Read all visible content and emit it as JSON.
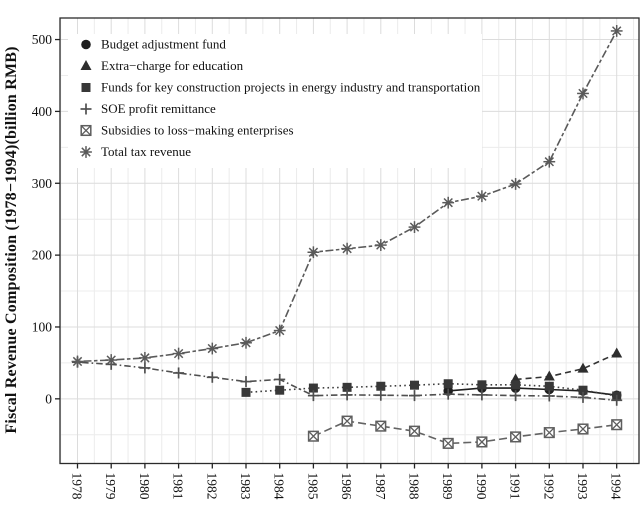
{
  "figure": {
    "background": "#ffffff",
    "panel_border_color": "#2b2b2b",
    "grid_major_color": "#dcdcdc",
    "grid_minor_color": "#ececec"
  },
  "chart_data": {
    "type": "line",
    "title": "",
    "xlabel": "",
    "ylabel": "Fiscal Revenue Composition (1978−1994)(billion RMB)",
    "x": [
      1978,
      1979,
      1980,
      1981,
      1982,
      1983,
      1984,
      1985,
      1986,
      1987,
      1988,
      1989,
      1990,
      1991,
      1992,
      1993,
      1994
    ],
    "x_tick_labels": [
      "1978",
      "1979",
      "1980",
      "1981",
      "1982",
      "1983",
      "1984",
      "1985",
      "1986",
      "1987",
      "1988",
      "1989",
      "1990",
      "1991",
      "1992",
      "1993",
      "1994"
    ],
    "y_ticks": [
      0,
      100,
      200,
      300,
      400,
      500
    ],
    "ylim": [
      -90,
      530
    ],
    "grid": "major and minor, light gray on white",
    "legend_position": "top-left inside panel",
    "series": [
      {
        "name": "Budget adjustment fund",
        "marker": "circle",
        "linestyle": "solid",
        "color": "#1f1f1f",
        "marker_color": "#1f1f1f",
        "start_year": 1989,
        "values": [
          11,
          15,
          15,
          13,
          11,
          5
        ]
      },
      {
        "name": "Extra−charge for education",
        "marker": "triangle",
        "linestyle": "dashed",
        "color": "#333333",
        "marker_color": "#2e2e2e",
        "start_year": 1991,
        "values": [
          27,
          31,
          42,
          63
        ]
      },
      {
        "name": "Funds for key construction projects in energy industry and transportation",
        "marker": "square",
        "linestyle": "dotted",
        "color": "#3d3d3d",
        "marker_color": "#383838",
        "start_year": 1983,
        "values": [
          9,
          12,
          15,
          16,
          17.5,
          19,
          21,
          19.5,
          19.5,
          17.5,
          12,
          4
        ]
      },
      {
        "name": "SOE profit remittance",
        "marker": "plus",
        "linestyle": "dashdot",
        "color": "#4f4f4f",
        "marker_color": "#4f4f4f",
        "start_year": 1978,
        "values": [
          51,
          48,
          43,
          36,
          30,
          24,
          27,
          4.5,
          5.5,
          5,
          4.5,
          6.5,
          5.5,
          4.5,
          4,
          2,
          -2
        ]
      },
      {
        "name": "Subsidies to loss−making enterprises",
        "marker": "square-x",
        "linestyle": "longdash",
        "color": "#636363",
        "marker_color": "#5e5e5e",
        "start_year": 1985,
        "values": [
          -52,
          -31,
          -38,
          -45,
          -62,
          -60,
          -53,
          -47,
          -42,
          -36
        ]
      },
      {
        "name": "Total tax revenue",
        "marker": "asterisk",
        "linestyle": "twodash",
        "color": "#5a5a5a",
        "marker_color": "#5a5a5a",
        "start_year": 1978,
        "values": [
          52,
          54,
          57,
          63,
          70,
          78,
          95,
          204,
          209,
          214,
          239,
          273,
          282,
          299,
          330,
          425,
          512
        ]
      }
    ]
  }
}
